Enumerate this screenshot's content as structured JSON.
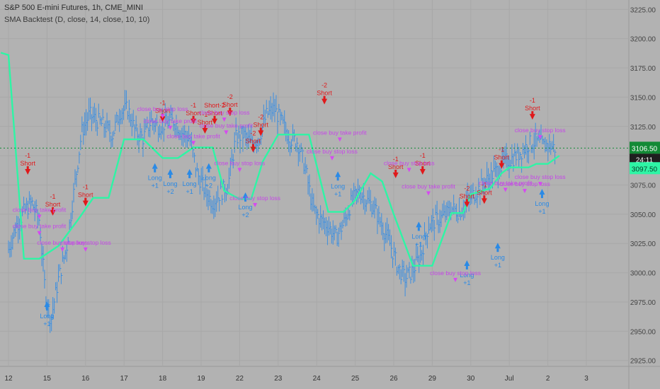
{
  "header": {
    "symbol_line": "S&P 500 E-mini Futures, 1h, CME_MINI",
    "indicator_line": "SMA Backtest (D, close, 14, close, 10, 10)"
  },
  "colors": {
    "background": "#b2b2b2",
    "grid": "#a8a8a8",
    "price_bars": "#3d8fe0",
    "sma_line": "#2ef5a5",
    "last_price_badge": "#138a36",
    "sma_badge": "#2ef5a5",
    "short_marker": "#e0191b",
    "long_marker": "#2a8ae6",
    "exit_marker": "#d64af0",
    "exit_text": "#c646e8"
  },
  "badges": {
    "last_price": "3106.50",
    "countdown": "24:11",
    "sma_value": "3097.50"
  },
  "signal_text": {
    "short": "Short",
    "long": "Long",
    "take_profit": "close buy take profit",
    "stop_loss": "close buy stop loss",
    "minus1": "-1",
    "minus2": "-2",
    "plus1": "+1",
    "plus2": "+2",
    "short_minus2": "Short-2"
  },
  "chart_data": {
    "type": "line",
    "title": "",
    "ylim": [
      2920,
      3230
    ],
    "y_ticks": [
      2925,
      2950,
      2975,
      3000,
      3025,
      3050,
      3075,
      3100,
      3125,
      3150,
      3175,
      3200,
      3225
    ],
    "y_tick_labels": [
      "2925.00",
      "2950.00",
      "2975.00",
      "3000.00",
      "3025.00",
      "3050.00",
      "3075.00",
      "3100.00",
      "3125.00",
      "3150.00",
      "3175.00",
      "3200.00",
      "3225.00"
    ],
    "x_tick_labels": [
      "12",
      "15",
      "16",
      "17",
      "18",
      "19",
      "22",
      "23",
      "24",
      "25",
      "26",
      "29",
      "30",
      "Jul",
      "2",
      "3"
    ],
    "series": [
      {
        "kind": "sma",
        "x": [
          -0.2,
          0,
          0.4,
          0.8,
          1.3,
          1.8,
          2.2,
          2.6,
          3.0,
          3.5,
          4.0,
          4.4,
          4.8,
          5.3,
          5.6,
          6.0,
          6.3,
          6.6,
          7.0,
          7.4,
          7.8,
          8.3,
          8.7,
          9.0,
          9.4,
          9.7,
          10.0,
          10.5,
          11.0,
          11.5,
          11.8,
          12.0,
          12.5,
          12.8,
          13.0,
          13.5,
          13.7,
          14.0,
          14.3
        ],
        "y": [
          3188,
          3186,
          3012,
          3012,
          3023,
          3045,
          3064,
          3064,
          3114,
          3114,
          3098,
          3098,
          3107,
          3107,
          3070,
          3063,
          3063,
          3095,
          3118,
          3118,
          3118,
          3052,
          3052,
          3062,
          3085,
          3078,
          3050,
          3006,
          3006,
          3051,
          3051,
          3067,
          3072,
          3085,
          3090,
          3090,
          3093,
          3093,
          3100
        ]
      },
      {
        "kind": "price",
        "x": [
          0,
          0.2,
          0.4,
          0.6,
          0.8,
          0.95,
          1.1,
          1.3,
          1.5,
          1.7,
          1.9,
          2.1,
          2.3,
          2.5,
          2.7,
          2.9,
          3.1,
          3.3,
          3.5,
          3.7,
          3.9,
          4.1,
          4.3,
          4.5,
          4.7,
          4.9,
          5.1,
          5.3,
          5.5,
          5.7,
          5.9,
          6.1,
          6.3,
          6.5,
          6.7,
          6.9,
          7.1,
          7.3,
          7.5,
          7.7,
          7.9,
          8.1,
          8.3,
          8.5,
          8.7,
          8.9,
          9.1,
          9.3,
          9.5,
          9.7,
          9.9,
          10.1,
          10.3,
          10.5,
          10.7,
          10.9,
          11.1,
          11.3,
          11.5,
          11.7,
          11.9,
          12.1,
          12.3,
          12.5,
          12.7,
          12.9,
          13.1,
          13.3,
          13.5,
          13.7,
          13.9,
          14.0,
          14.2
        ],
        "y": [
          3020,
          3040,
          3052,
          3060,
          3045,
          2985,
          2960,
          2995,
          3020,
          3070,
          3120,
          3135,
          3130,
          3125,
          3118,
          3138,
          3140,
          3120,
          3115,
          3130,
          3125,
          3128,
          3130,
          3120,
          3115,
          3085,
          3070,
          3060,
          3068,
          3075,
          3115,
          3118,
          3110,
          3115,
          3135,
          3140,
          3128,
          3115,
          3112,
          3090,
          3055,
          3045,
          3040,
          3030,
          3042,
          3060,
          3070,
          3062,
          3055,
          3040,
          3025,
          3005,
          2995,
          3002,
          3015,
          3040,
          3045,
          3048,
          3055,
          3052,
          3060,
          3068,
          3075,
          3082,
          3088,
          3095,
          3098,
          3103,
          3110,
          3112,
          3108,
          3110,
          3106
        ]
      }
    ]
  }
}
